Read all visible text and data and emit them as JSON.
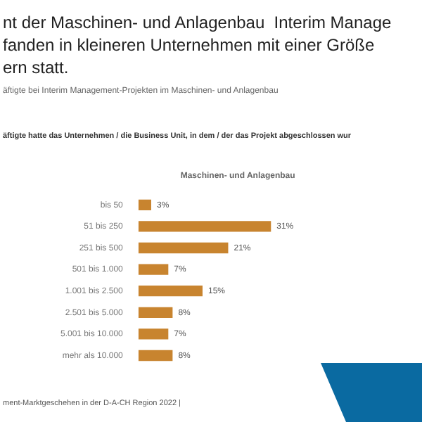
{
  "chart_data": {
    "type": "bar",
    "orientation": "horizontal",
    "title": "nt der Maschinen- und Anlagenbau  Interim Manage\nfanden in kleineren Unternehmen mit einer Größe\nern statt.",
    "subtitle": "äftigte bei Interim Management-Projekten im Maschinen- und Anlagenbau",
    "annotations": [
      "äftigte hatte das Unternehmen / die Business Unit, in dem / der das Projekt abgeschlossen wur",
      "ment-Marktgeschehen  in der D-A-CH Region 2022 |"
    ],
    "categories": [
      "bis 50",
      "51 bis 250",
      "251 bis 500",
      "501 bis 1.000",
      "1.001 bis 2.500",
      "2.501 bis 5.000",
      "5.001 bis 10.000",
      "mehr als 10.000"
    ],
    "series": [
      {
        "name": "Maschinen- und Anlagenbau",
        "color": "#c8842f",
        "values": [
          3,
          31,
          21,
          7,
          15,
          8,
          7,
          8
        ],
        "value_labels": [
          "3%",
          "31%",
          "21%",
          "7%",
          "15%",
          "8%",
          "7%",
          "8%"
        ]
      }
    ],
    "grid": false,
    "legend": "top"
  }
}
